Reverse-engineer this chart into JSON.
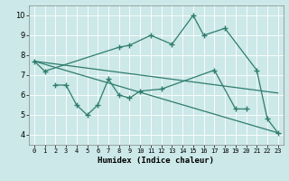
{
  "xlabel": "Humidex (Indice chaleur)",
  "x_values": [
    0,
    1,
    2,
    3,
    4,
    5,
    6,
    7,
    8,
    9,
    10,
    11,
    12,
    13,
    14,
    15,
    16,
    17,
    18,
    19,
    20,
    21,
    22,
    23
  ],
  "series1_x": [
    0,
    1,
    8,
    9,
    11,
    13,
    15,
    16,
    18,
    21,
    22,
    23
  ],
  "series1_y": [
    7.7,
    7.2,
    8.4,
    8.5,
    9.0,
    8.55,
    10.0,
    9.0,
    9.35,
    7.25,
    4.8,
    4.1
  ],
  "series2_x": [
    2,
    3,
    4,
    5,
    6,
    7,
    8,
    9,
    10,
    12,
    17,
    19,
    20
  ],
  "series2_y": [
    6.5,
    6.5,
    5.5,
    5.0,
    5.5,
    6.8,
    6.0,
    5.85,
    6.2,
    6.3,
    7.25,
    5.3,
    5.3
  ],
  "line3_x": [
    0,
    23
  ],
  "line3_y": [
    7.7,
    6.1
  ],
  "line4_x": [
    0,
    23
  ],
  "line4_y": [
    7.7,
    4.1
  ],
  "ylim": [
    3.5,
    10.5
  ],
  "xlim": [
    -0.5,
    23.5
  ],
  "yticks": [
    4,
    5,
    6,
    7,
    8,
    9,
    10
  ],
  "xtick_labels": [
    "0",
    "1",
    "2",
    "3",
    "4",
    "5",
    "6",
    "7",
    "8",
    "9",
    "10",
    "11",
    "12",
    "13",
    "14",
    "15",
    "16",
    "17",
    "18",
    "19",
    "20",
    "21",
    "22",
    "23"
  ],
  "line_color": "#2e7d6e",
  "bg_color": "#cce8e8",
  "grid_color": "#ffffff",
  "marker": "+",
  "markersize": 4,
  "markeredgewidth": 1.0,
  "linewidth": 0.9,
  "xlabel_fontsize": 6.5,
  "ytick_fontsize": 6.0,
  "xtick_fontsize": 5.0
}
